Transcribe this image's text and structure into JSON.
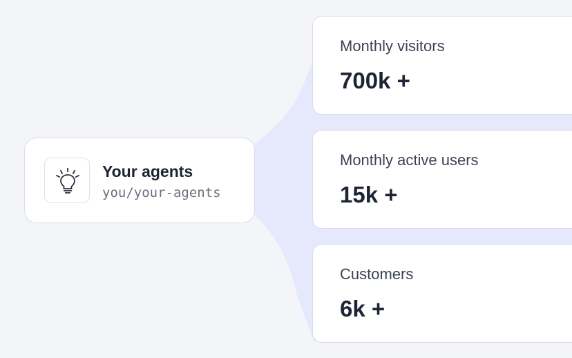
{
  "agent": {
    "title": "Your agents",
    "path": "you/your-agents",
    "icon": "lightbulb-icon"
  },
  "stats": [
    {
      "label": "Monthly visitors",
      "value": "700k +"
    },
    {
      "label": "Monthly active users",
      "value": "15k +"
    },
    {
      "label": "Customers",
      "value": "6k +"
    }
  ],
  "colors": {
    "background": "#f4f5f9",
    "connector": "#e6e9fb",
    "card_border": "#d9dcf0",
    "text_primary": "#1e2433",
    "text_secondary": "#6b6f7d"
  }
}
